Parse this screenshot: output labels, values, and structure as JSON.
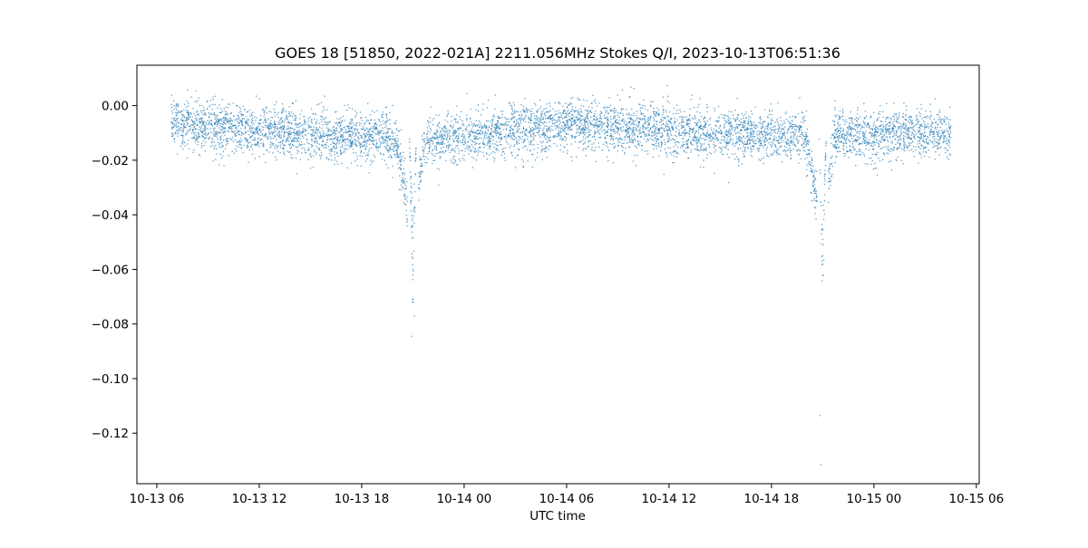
{
  "chart_data": {
    "type": "scatter",
    "title": "GOES 18 [51850, 2022-021A] 2211.056MHz Stokes Q/I, 2023-10-13T06:51:36",
    "xlabel": "UTC time",
    "ylabel": "",
    "xlim": [
      "2023-10-13T04:50",
      "2023-10-15T06:10"
    ],
    "ylim": [
      -0.1385,
      0.0148
    ],
    "grid": false,
    "marker_color": "#1f77b4",
    "x_ticks": [
      {
        "value": "2023-10-13T06:00",
        "label": "10-13 06"
      },
      {
        "value": "2023-10-13T12:00",
        "label": "10-13 12"
      },
      {
        "value": "2023-10-13T18:00",
        "label": "10-13 18"
      },
      {
        "value": "2023-10-14T00:00",
        "label": "10-14 00"
      },
      {
        "value": "2023-10-14T06:00",
        "label": "10-14 06"
      },
      {
        "value": "2023-10-14T12:00",
        "label": "10-14 12"
      },
      {
        "value": "2023-10-14T18:00",
        "label": "10-14 18"
      },
      {
        "value": "2023-10-15T00:00",
        "label": "10-15 00"
      },
      {
        "value": "2023-10-15T06:00",
        "label": "10-15 06"
      }
    ],
    "y_ticks": [
      {
        "value": 0.0,
        "label": "0.00"
      },
      {
        "value": -0.02,
        "label": "−0.02"
      },
      {
        "value": -0.04,
        "label": "−0.04"
      },
      {
        "value": -0.06,
        "label": "−0.06"
      },
      {
        "value": -0.08,
        "label": "−0.08"
      },
      {
        "value": -0.1,
        "label": "−0.10"
      },
      {
        "value": -0.12,
        "label": "−0.12"
      }
    ],
    "series": [
      {
        "x": [
          "2023-10-13T06:51",
          "2023-10-13T08:00",
          "2023-10-13T10:00",
          "2023-10-13T12:00",
          "2023-10-13T14:00",
          "2023-10-13T16:00",
          "2023-10-13T18:00",
          "2023-10-13T20:00",
          "2023-10-13T20:40",
          "2023-10-13T21:00",
          "2023-10-13T21:20",
          "2023-10-13T21:40",
          "2023-10-13T22:00",
          "2023-10-14T00:00",
          "2023-10-14T02:00",
          "2023-10-14T04:00",
          "2023-10-14T06:00",
          "2023-10-14T08:00",
          "2023-10-14T10:00",
          "2023-10-14T12:00",
          "2023-10-14T14:00",
          "2023-10-14T16:00",
          "2023-10-14T18:00",
          "2023-10-14T20:00",
          "2023-10-14T20:40",
          "2023-10-14T21:00",
          "2023-10-14T21:20",
          "2023-10-14T21:40",
          "2023-10-14T22:00",
          "2023-10-15T00:00",
          "2023-10-15T02:00",
          "2023-10-15T04:00",
          "2023-10-15T04:30"
        ],
        "y": [
          -0.006,
          -0.007,
          -0.008,
          -0.009,
          -0.01,
          -0.011,
          -0.011,
          -0.012,
          -0.035,
          -0.062,
          -0.03,
          -0.013,
          -0.012,
          -0.011,
          -0.01,
          -0.008,
          -0.007,
          -0.007,
          -0.008,
          -0.009,
          -0.01,
          -0.01,
          -0.011,
          -0.012,
          -0.035,
          -0.058,
          -0.028,
          -0.012,
          -0.011,
          -0.011,
          -0.01,
          -0.01,
          -0.01
        ]
      }
    ],
    "outliers": [
      {
        "x": "2023-10-13T20:55",
        "y": -0.0845
      },
      {
        "x": "2023-10-13T21:05",
        "y": -0.077
      },
      {
        "x": "2023-10-14T20:50",
        "y": -0.1135
      },
      {
        "x": "2023-10-14T20:53",
        "y": -0.1315
      }
    ]
  }
}
